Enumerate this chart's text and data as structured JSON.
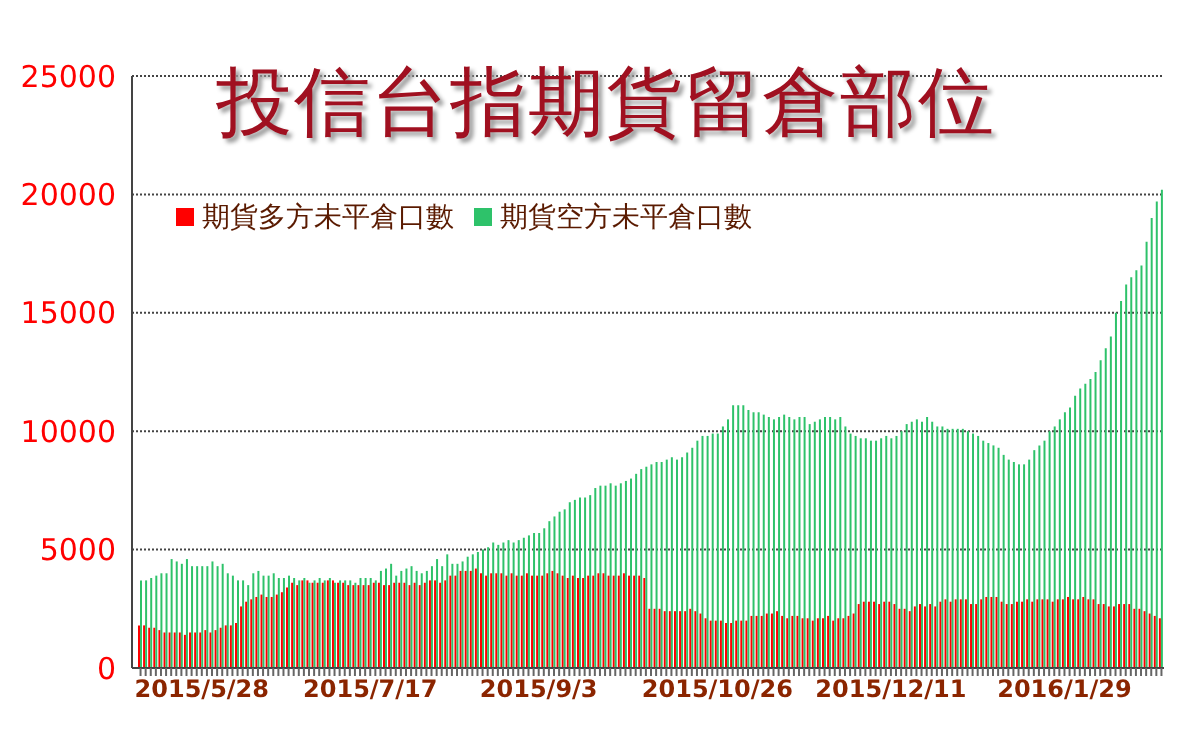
{
  "chart_data": {
    "type": "bar",
    "title": "投信台指期貨留倉部位",
    "categories": [
      null,
      null,
      null,
      null,
      null,
      null,
      null,
      null,
      null,
      null,
      null,
      null,
      "2015/5/28",
      null,
      null,
      null,
      null,
      null,
      null,
      null,
      null,
      null,
      null,
      null,
      null,
      null,
      null,
      null,
      null,
      null,
      null,
      null,
      null,
      null,
      null,
      null,
      null,
      null,
      null,
      null,
      null,
      null,
      null,
      null,
      null,
      "2015/7/17",
      null,
      null,
      null,
      null,
      null,
      null,
      null,
      null,
      null,
      null,
      null,
      null,
      null,
      null,
      null,
      null,
      null,
      null,
      null,
      null,
      null,
      null,
      null,
      null,
      null,
      null,
      null,
      null,
      null,
      null,
      null,
      null,
      "2015/9/3",
      null,
      null,
      null,
      null,
      null,
      null,
      null,
      null,
      null,
      null,
      null,
      null,
      null,
      null,
      null,
      null,
      null,
      null,
      null,
      null,
      null,
      null,
      null,
      null,
      null,
      null,
      null,
      null,
      null,
      null,
      null,
      null,
      null,
      null,
      "2015/10/26",
      null,
      null,
      null,
      null,
      null,
      null,
      null,
      null,
      null,
      null,
      null,
      null,
      null,
      null,
      null,
      null,
      null,
      null,
      null,
      null,
      null,
      null,
      null,
      null,
      null,
      null,
      null,
      null,
      null,
      null,
      null,
      null,
      null,
      "2015/12/11",
      null,
      null,
      null,
      null,
      null,
      null,
      null,
      null,
      null,
      null,
      null,
      null,
      null,
      null,
      null,
      null,
      null,
      null,
      null,
      null,
      null,
      null,
      null,
      null,
      null,
      null,
      null,
      null,
      null,
      null,
      null,
      null,
      null,
      "2016/1/29",
      null,
      null,
      null,
      null,
      null,
      null,
      null,
      null,
      null,
      null,
      null,
      null,
      null,
      null,
      null,
      null,
      null,
      null,
      null
    ],
    "series": [
      {
        "name": "期貨多方未平倉口數",
        "color": "#ff0000",
        "values": [
          1800,
          1800,
          1700,
          1700,
          1600,
          1500,
          1500,
          1500,
          1500,
          1400,
          1500,
          1500,
          1500,
          1600,
          1500,
          1600,
          1700,
          1800,
          1800,
          1900,
          2600,
          2800,
          2900,
          3000,
          3100,
          3000,
          3000,
          3100,
          3200,
          3400,
          3600,
          3500,
          3700,
          3700,
          3600,
          3600,
          3600,
          3700,
          3700,
          3600,
          3600,
          3500,
          3500,
          3500,
          3500,
          3500,
          3600,
          3600,
          3500,
          3500,
          3600,
          3600,
          3600,
          3500,
          3600,
          3500,
          3600,
          3700,
          3700,
          3600,
          3700,
          3900,
          3900,
          4100,
          4100,
          4100,
          4200,
          4000,
          3900,
          4000,
          4000,
          4000,
          3900,
          4000,
          3900,
          3900,
          4000,
          3900,
          3900,
          3900,
          4000,
          4100,
          4000,
          3900,
          3800,
          3900,
          3800,
          3800,
          3900,
          3900,
          4000,
          4000,
          3900,
          3900,
          3900,
          4000,
          3900,
          3900,
          3900,
          3800,
          2500,
          2500,
          2500,
          2400,
          2400,
          2400,
          2400,
          2400,
          2500,
          2400,
          2300,
          2100,
          2000,
          2000,
          2000,
          1900,
          1900,
          2000,
          2000,
          2000,
          2200,
          2200,
          2200,
          2300,
          2300,
          2400,
          2200,
          2100,
          2200,
          2200,
          2100,
          2100,
          2000,
          2100,
          2100,
          2200,
          2000,
          2100,
          2100,
          2200,
          2300,
          2700,
          2800,
          2800,
          2800,
          2700,
          2800,
          2800,
          2700,
          2500,
          2500,
          2400,
          2600,
          2700,
          2600,
          2700,
          2600,
          2800,
          2900,
          2800,
          2900,
          2900,
          2900,
          2700,
          2700,
          2900,
          3000,
          3000,
          3000,
          2800,
          2700,
          2700,
          2800,
          2800,
          2900,
          2800,
          2900,
          2900,
          2900,
          2800,
          2900,
          2900,
          3000,
          2900,
          2900,
          3000,
          2900,
          2900,
          2700,
          2700,
          2600,
          2600,
          2700,
          2700,
          2700,
          2500,
          2500,
          2400,
          2300,
          2200,
          2100
        ]
      },
      {
        "name": "期貨空方未平倉口數",
        "color": "#2ec26a",
        "values": [
          3700,
          3700,
          3800,
          3900,
          4000,
          4000,
          4600,
          4500,
          4400,
          4600,
          4300,
          4300,
          4300,
          4300,
          4500,
          4300,
          4400,
          4000,
          3900,
          3700,
          3700,
          3500,
          4000,
          4100,
          3900,
          3900,
          4000,
          3800,
          3800,
          3900,
          3800,
          3700,
          3800,
          3600,
          3700,
          3800,
          3700,
          3800,
          3600,
          3700,
          3700,
          3700,
          3600,
          3800,
          3800,
          3800,
          3700,
          4100,
          4200,
          4400,
          3900,
          4100,
          4200,
          4300,
          4100,
          4000,
          4100,
          4300,
          4600,
          4300,
          4800,
          4400,
          4400,
          4500,
          4700,
          4800,
          4900,
          5000,
          5100,
          5300,
          5200,
          5300,
          5400,
          5300,
          5400,
          5500,
          5600,
          5700,
          5700,
          5900,
          6200,
          6400,
          6600,
          6700,
          7000,
          7100,
          7200,
          7200,
          7300,
          7600,
          7700,
          7700,
          7800,
          7700,
          7800,
          7900,
          8000,
          8200,
          8400,
          8500,
          8600,
          8700,
          8700,
          8800,
          8900,
          8800,
          8900,
          9100,
          9300,
          9600,
          9800,
          9800,
          9900,
          9900,
          10200,
          10500,
          11100,
          11100,
          11100,
          10900,
          10800,
          10800,
          10700,
          10600,
          10500,
          10600,
          10700,
          10600,
          10500,
          10600,
          10600,
          10300,
          10400,
          10500,
          10600,
          10600,
          10500,
          10600,
          10200,
          9900,
          9800,
          9700,
          9700,
          9600,
          9600,
          9700,
          9800,
          9700,
          9800,
          10000,
          10300,
          10400,
          10500,
          10400,
          10600,
          10400,
          10200,
          10200,
          10100,
          10100,
          10100,
          10100,
          10000,
          9900,
          9800,
          9600,
          9500,
          9400,
          9300,
          9000,
          8800,
          8700,
          8600,
          8600,
          8800,
          9200,
          9400,
          9600,
          10000,
          10200,
          10500,
          10800,
          11000,
          11500,
          11800,
          12000,
          12200,
          12500,
          13000,
          13500,
          14000,
          15000,
          15500,
          16200,
          16500,
          16800,
          17000,
          18000,
          19000,
          19700,
          20200
        ]
      }
    ],
    "ylim": [
      0,
      25000
    ],
    "yticks": [
      0,
      5000,
      10000,
      15000,
      20000,
      25000
    ],
    "grid": "y",
    "legend": "top left"
  }
}
